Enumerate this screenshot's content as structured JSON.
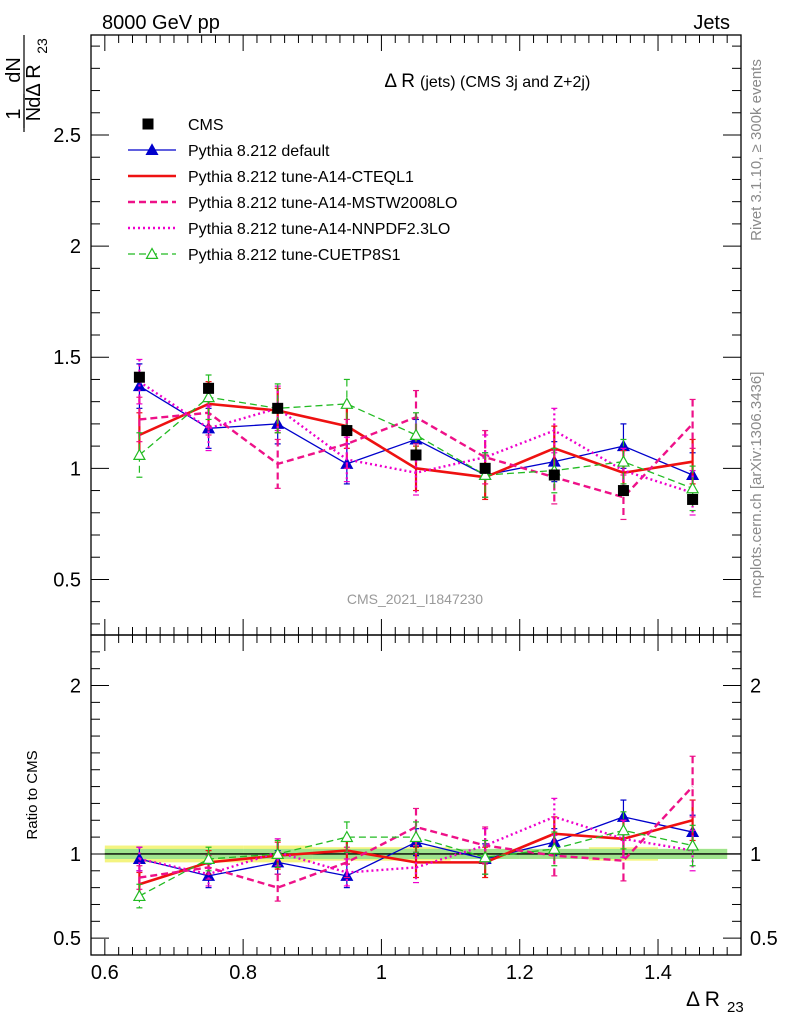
{
  "header": {
    "left_label": "8000 GeV pp",
    "right_label": "Jets",
    "plot_title_main": "Δ R",
    "plot_title_rest": "(jets) (CMS 3j and Z+2j)",
    "watermark": "CMS_2021_I1847230",
    "side_label_top": "Rivet 3.1.10, ≥ 300k events",
    "side_label_bottom": "mcplots.cern.ch [arXiv:1306.3436]"
  },
  "axes": {
    "ylabel_frac_num": "1",
    "ylabel_frac_den": "N",
    "ylabel_dN": "dN",
    "ylabel_dR": "dΔ R",
    "ylabel_sub": "23",
    "ratio_ylabel": "Ratio to CMS",
    "xlabel": "Δ R",
    "xlabel_sub": "23"
  },
  "chart_data": {
    "type": "line",
    "title": "Δ R (jets) (CMS 3j and Z+2j)",
    "x_bins": [
      0.6,
      0.7,
      0.8,
      0.9,
      1.0,
      1.1,
      1.2,
      1.3,
      1.4,
      1.5
    ],
    "x": [
      0.65,
      0.75,
      0.85,
      0.95,
      1.05,
      1.15,
      1.25,
      1.35,
      1.45
    ],
    "xlim": [
      0.58,
      1.52
    ],
    "ylim_main": [
      0.25,
      2.95
    ],
    "ylim_ratio": [
      0.4,
      2.3
    ],
    "x_ticks": [
      {
        "v": 0.6,
        "label": "0.6"
      },
      {
        "v": 0.8,
        "label": "0.8"
      },
      {
        "v": 1.0,
        "label": "1"
      },
      {
        "v": 1.2,
        "label": "1.2"
      },
      {
        "v": 1.4,
        "label": "1.4"
      }
    ],
    "y_ticks_main": [
      {
        "v": 0.5,
        "label": "0.5"
      },
      {
        "v": 1.0,
        "label": "1"
      },
      {
        "v": 1.5,
        "label": "1.5"
      },
      {
        "v": 2.0,
        "label": "2"
      },
      {
        "v": 2.5,
        "label": "2.5"
      }
    ],
    "y_ticks_ratio": [
      {
        "v": 0.5,
        "label": "0.5"
      },
      {
        "v": 1.0,
        "label": "1"
      },
      {
        "v": 2.0,
        "label": "2"
      }
    ],
    "cms": {
      "name": "CMS",
      "values": [
        1.41,
        1.36,
        1.27,
        1.17,
        1.06,
        1.0,
        0.97,
        0.9,
        0.86
      ],
      "errors": [
        0.025,
        0.025,
        0.025,
        0.025,
        0.025,
        0.025,
        0.025,
        0.025,
        0.025
      ],
      "band_green": [
        0.03,
        0.03,
        0.03,
        0.03,
        0.03,
        0.03,
        0.03,
        0.03,
        0.03
      ],
      "band_yellow": [
        0.05,
        0.05,
        0.05,
        0.04,
        0.04,
        0.03,
        0.03,
        0.04,
        0.03
      ]
    },
    "series": [
      {
        "name": "Pythia 8.212 default",
        "color": "#0000cc",
        "style": "solid",
        "width": 1.3,
        "marker": "triangle",
        "values": [
          1.37,
          1.18,
          1.2,
          1.02,
          1.13,
          0.97,
          1.03,
          1.1,
          0.97
        ],
        "errors": [
          0.1,
          0.09,
          0.09,
          0.09,
          0.09,
          0.1,
          0.09,
          0.1,
          0.1
        ],
        "ratio": [
          0.97,
          0.87,
          0.95,
          0.87,
          1.07,
          0.97,
          1.07,
          1.22,
          1.13
        ],
        "ratio_errors": [
          0.07,
          0.07,
          0.07,
          0.07,
          0.08,
          0.09,
          0.08,
          0.1,
          0.1
        ]
      },
      {
        "name": "Pythia 8.212 tune-A14-CTEQL1",
        "color": "#ee1111",
        "style": "solid",
        "width": 2.6,
        "marker": "none",
        "values": [
          1.15,
          1.29,
          1.26,
          1.19,
          1.0,
          0.96,
          1.09,
          0.98,
          1.03
        ],
        "errors": [
          0.1,
          0.1,
          0.1,
          0.1,
          0.1,
          0.1,
          0.1,
          0.1,
          0.1
        ],
        "ratio": [
          0.82,
          0.95,
          0.99,
          1.02,
          0.95,
          0.95,
          1.12,
          1.09,
          1.2
        ],
        "ratio_errors": [
          0.07,
          0.07,
          0.08,
          0.08,
          0.09,
          0.09,
          0.1,
          0.11,
          0.12
        ]
      },
      {
        "name": "Pythia 8.212 tune-A14-MSTW2008LO",
        "color": "#ee1188",
        "style": "dashed",
        "width": 2.4,
        "marker": "none",
        "values": [
          1.22,
          1.25,
          1.02,
          1.11,
          1.23,
          1.05,
          0.96,
          0.87,
          1.2
        ],
        "errors": [
          0.1,
          0.1,
          0.11,
          0.11,
          0.12,
          0.12,
          0.12,
          0.1,
          0.11
        ],
        "ratio": [
          0.86,
          0.92,
          0.8,
          0.95,
          1.16,
          1.05,
          0.99,
          0.96,
          1.4
        ],
        "ratio_errors": [
          0.07,
          0.07,
          0.08,
          0.09,
          0.11,
          0.11,
          0.12,
          0.12,
          0.18
        ]
      },
      {
        "name": "Pythia 8.212 tune-A14-NNPDF2.3LO",
        "color": "#ee00cc",
        "style": "dotted",
        "width": 2.4,
        "marker": "none",
        "values": [
          1.39,
          1.18,
          1.27,
          1.04,
          0.98,
          1.05,
          1.17,
          0.99,
          0.89
        ],
        "errors": [
          0.1,
          0.1,
          0.1,
          0.1,
          0.1,
          0.1,
          0.1,
          0.1,
          0.1
        ],
        "ratio": [
          0.97,
          0.88,
          1.01,
          0.89,
          0.92,
          1.05,
          1.22,
          1.09,
          1.02
        ],
        "ratio_errors": [
          0.07,
          0.07,
          0.08,
          0.08,
          0.09,
          0.1,
          0.11,
          0.11,
          0.12
        ]
      },
      {
        "name": "Pythia 8.212 tune-CUETP8S1",
        "color": "#22bb22",
        "style": "dashed",
        "width": 1.3,
        "marker": "open-triangle",
        "values": [
          1.06,
          1.32,
          1.27,
          1.29,
          1.15,
          0.97,
          0.99,
          1.03,
          0.91
        ],
        "errors": [
          0.1,
          0.1,
          0.11,
          0.11,
          0.1,
          0.1,
          0.1,
          0.1,
          0.1
        ],
        "ratio": [
          0.75,
          0.97,
          1.0,
          1.1,
          1.1,
          0.98,
          1.03,
          1.14,
          1.05
        ],
        "ratio_errors": [
          0.07,
          0.07,
          0.08,
          0.09,
          0.09,
          0.1,
          0.1,
          0.11,
          0.12
        ]
      }
    ]
  }
}
